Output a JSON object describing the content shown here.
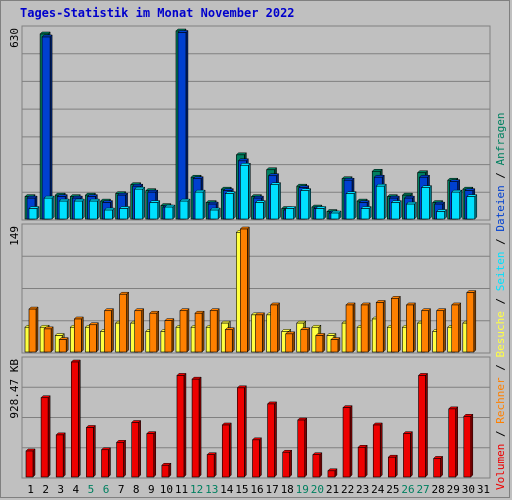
{
  "title": "Tages-Statistik im Monat November 2022",
  "colors": {
    "background": "#c0c0c0",
    "panel": "#c0c0c0",
    "grid": "#808080",
    "anfragen": "#008060",
    "dateien": "#0040d0",
    "seiten": "#00e0ff",
    "besuche": "#ffff40",
    "rechner": "#ff8000",
    "volumen": "#ee0000",
    "weekend": "#008060",
    "weekday": "#000000"
  },
  "legend": {
    "anfragen": "Anfragen",
    "dateien": "Dateien",
    "seiten": "Seiten",
    "besuche": "Besuche",
    "rechner": "Rechner",
    "volumen": "Volumen",
    "separator": " / "
  },
  "chart_data": [
    {
      "type": "bar",
      "panel": "top",
      "ytick": "630",
      "ymax": 630,
      "categories": [
        "1",
        "2",
        "3",
        "4",
        "5",
        "6",
        "7",
        "8",
        "9",
        "10",
        "11",
        "12",
        "13",
        "14",
        "15",
        "16",
        "17",
        "18",
        "19",
        "20",
        "21",
        "22",
        "23",
        "24",
        "25",
        "26",
        "27",
        "28",
        "29",
        "30",
        "31"
      ],
      "weekend": [
        "5",
        "6",
        "12",
        "13",
        "19",
        "20",
        "26",
        "27"
      ],
      "series": [
        {
          "name": "Anfragen",
          "values": [
            75,
            620,
            80,
            75,
            80,
            60,
            85,
            115,
            95,
            45,
            630,
            140,
            55,
            100,
            215,
            75,
            165,
            35,
            110,
            40,
            25,
            135,
            60,
            160,
            75,
            80,
            155,
            55,
            130,
            100,
            0
          ]
        },
        {
          "name": "Dateien",
          "values": [
            70,
            610,
            75,
            70,
            75,
            55,
            80,
            110,
            90,
            40,
            625,
            135,
            50,
            95,
            195,
            70,
            145,
            30,
            105,
            35,
            20,
            130,
            55,
            140,
            70,
            70,
            140,
            50,
            125,
            95,
            0
          ]
        },
        {
          "name": "Seiten",
          "values": [
            35,
            70,
            60,
            60,
            60,
            30,
            35,
            100,
            55,
            40,
            60,
            90,
            30,
            85,
            180,
            55,
            115,
            35,
            95,
            35,
            20,
            85,
            35,
            110,
            55,
            50,
            105,
            25,
            90,
            75,
            0
          ]
        }
      ]
    },
    {
      "type": "bar",
      "panel": "middle",
      "ytick": "149",
      "ymax": 149,
      "series": [
        {
          "name": "Besuche",
          "values": [
            30,
            30,
            20,
            30,
            30,
            25,
            35,
            35,
            25,
            25,
            30,
            30,
            30,
            35,
            145,
            45,
            45,
            25,
            35,
            30,
            20,
            35,
            30,
            40,
            30,
            30,
            35,
            25,
            30,
            35,
            0
          ]
        },
        {
          "name": "Rechner",
          "values": [
            52,
            28,
            15,
            40,
            33,
            50,
            70,
            50,
            47,
            38,
            50,
            47,
            50,
            27,
            149,
            45,
            57,
            22,
            27,
            20,
            15,
            57,
            57,
            60,
            65,
            57,
            50,
            50,
            57,
            72,
            0
          ]
        }
      ]
    },
    {
      "type": "bar",
      "panel": "bottom",
      "ytick": "928.47 KB",
      "ymax": 928.47,
      "series": [
        {
          "name": "Volumen",
          "values": [
            210,
            640,
            340,
            928.47,
            400,
            220,
            280,
            440,
            350,
            95,
            820,
            790,
            180,
            420,
            720,
            300,
            590,
            200,
            460,
            180,
            50,
            560,
            240,
            420,
            160,
            350,
            820,
            150,
            550,
            490,
            0
          ]
        }
      ]
    }
  ]
}
